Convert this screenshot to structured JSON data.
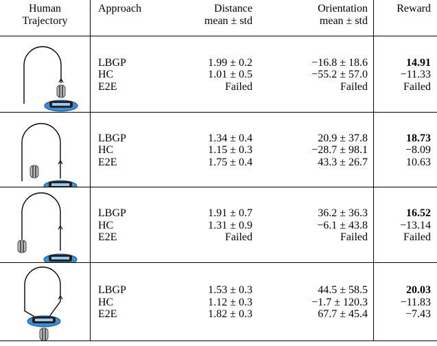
{
  "header": [
    [
      "Human",
      "Trajectory"
    ],
    [
      "Approach"
    ],
    [
      "Distance",
      "mean ± std"
    ],
    [
      "Orientation",
      "mean ± std"
    ],
    [
      "Reward"
    ]
  ],
  "groups": [
    {
      "rows": [
        [
          "LBGP",
          "1.99 ± 0.2",
          "−16.8 ± 18.6",
          "14.91"
        ],
        [
          "HC",
          "1.01 ± 0.5",
          "−55.2 ± 57.0",
          "−11.33"
        ],
        [
          "E2E",
          "Failed",
          "Failed",
          "Failed"
        ]
      ]
    },
    {
      "rows": [
        [
          "LBGP",
          "1.34 ± 0.4",
          "20.9 ± 37.8",
          "18.73"
        ],
        [
          "HC",
          "1.15 ± 0.3",
          "−28.7 ± 98.1",
          "−8.09"
        ],
        [
          "E2E",
          "1.75 ± 0.4",
          "43.3 ± 26.7",
          "10.63"
        ]
      ]
    },
    {
      "rows": [
        [
          "LBGP",
          "1.91 ± 0.7",
          "36.2 ± 36.3",
          "16.52"
        ],
        [
          "HC",
          "1.31 ± 0.9",
          "−6.1 ± 43.8",
          "−13.14"
        ],
        [
          "E2E",
          "Failed",
          "Failed",
          "Failed"
        ]
      ]
    },
    {
      "rows": [
        [
          "LBGP",
          "1.53 ± 0.3",
          "44.5 ± 58.5",
          "20.03"
        ],
        [
          "HC",
          "1.12 ± 0.3",
          "−1.7 ± 120.3",
          "−11.83"
        ],
        [
          "E2E",
          "1.82 ± 0.3",
          "67.7 ± 45.4",
          "−7.43"
        ]
      ]
    }
  ]
}
